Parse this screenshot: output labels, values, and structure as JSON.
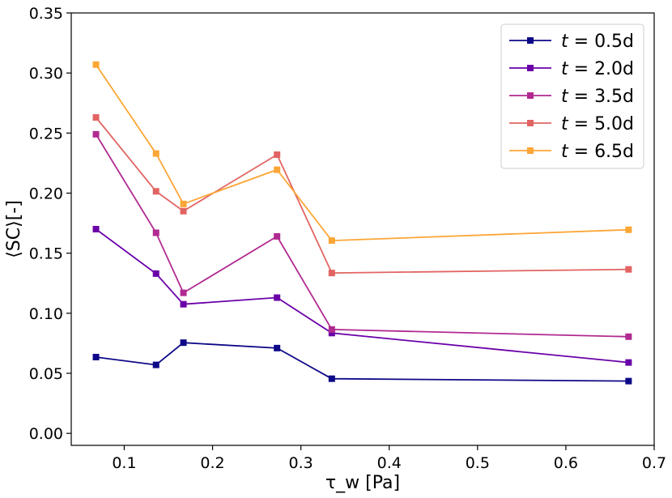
{
  "chart_data": {
    "type": "line",
    "title": "",
    "xlabel": "τ_w [Pa]",
    "ylabel": "⟨SC⟩[-]",
    "xlim": [
      0.04,
      0.7
    ],
    "ylim": [
      -0.01,
      0.35
    ],
    "xticks": [
      0.1,
      0.2,
      0.3,
      0.4,
      0.5,
      0.6,
      0.7
    ],
    "xtick_labels": [
      "0.1",
      "0.2",
      "0.3",
      "0.4",
      "0.5",
      "0.6",
      "0.7"
    ],
    "yticks": [
      0.0,
      0.05,
      0.1,
      0.15,
      0.2,
      0.25,
      0.3,
      0.35
    ],
    "ytick_labels": [
      "0.00",
      "0.05",
      "0.10",
      "0.15",
      "0.20",
      "0.25",
      "0.30",
      "0.35"
    ],
    "grid": false,
    "legend_position": "top-right",
    "x": [
      0.068,
      0.136,
      0.167,
      0.273,
      0.335,
      0.671
    ],
    "series": [
      {
        "name": "t = 0.5d",
        "var": "t",
        "eq": " = ",
        "value_label": "0.5d",
        "color": "#0d0887",
        "values": [
          0.0635,
          0.057,
          0.0755,
          0.071,
          0.0455,
          0.0435
        ]
      },
      {
        "name": "t = 2.0d",
        "var": "t",
        "eq": " = ",
        "value_label": "2.0d",
        "color": "#6a00a8",
        "values": [
          0.17,
          0.133,
          0.1075,
          0.113,
          0.0835,
          0.059
        ]
      },
      {
        "name": "t = 3.5d",
        "var": "t",
        "eq": " = ",
        "value_label": "3.5d",
        "color": "#b12a90",
        "values": [
          0.249,
          0.167,
          0.117,
          0.164,
          0.0865,
          0.0805
        ]
      },
      {
        "name": "t = 5.0d",
        "var": "t",
        "eq": " = ",
        "value_label": "5.0d",
        "color": "#e16462",
        "values": [
          0.263,
          0.2015,
          0.185,
          0.232,
          0.1335,
          0.1365
        ]
      },
      {
        "name": "t = 6.5d",
        "var": "t",
        "eq": " = ",
        "value_label": "6.5d",
        "color": "#fca636",
        "values": [
          0.307,
          0.233,
          0.191,
          0.2195,
          0.1605,
          0.1695
        ]
      }
    ]
  }
}
